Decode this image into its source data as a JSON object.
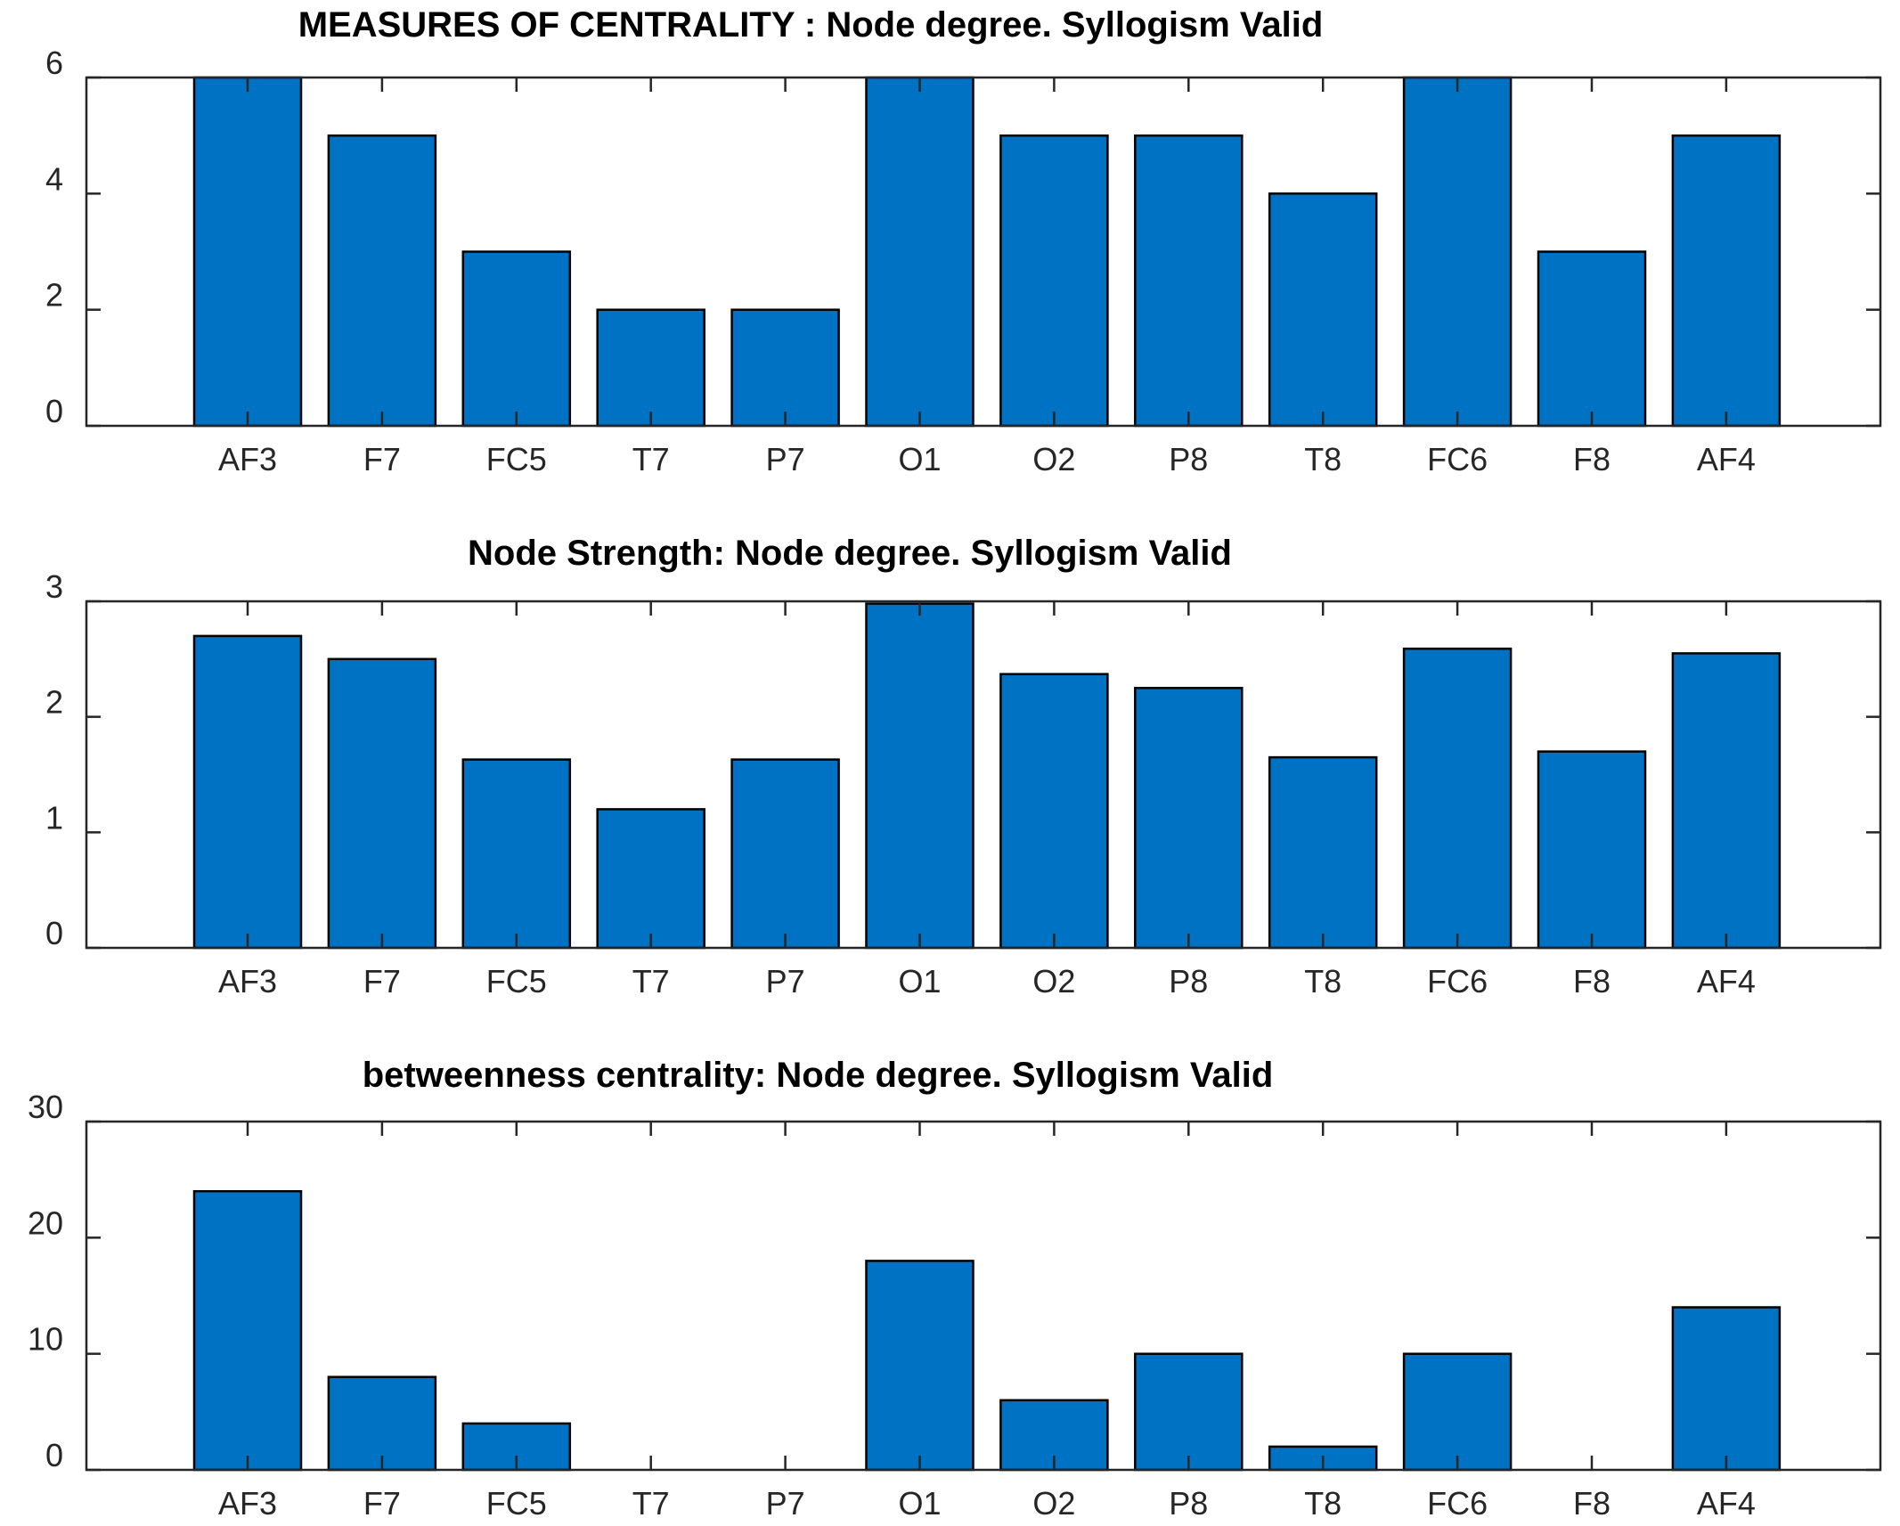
{
  "chart_data": [
    {
      "type": "bar",
      "title": "MEASURES OF CENTRALITY : Node degree. Syllogism  Valid",
      "categories": [
        "AF3",
        "F7",
        "FC5",
        "T7",
        "P7",
        "O1",
        "O2",
        "P8",
        "T8",
        "FC6",
        "F8",
        "AF4"
      ],
      "values": [
        6,
        5,
        3,
        2,
        2,
        6,
        5,
        5,
        4,
        6,
        3,
        5
      ],
      "ylim": [
        0,
        6
      ],
      "yticks": [
        0,
        2,
        4,
        6
      ],
      "xlabel": "",
      "ylabel": "",
      "grid": false,
      "bar_color": "#0072c4"
    },
    {
      "type": "bar",
      "title": "Node Strength: Node degree. Syllogism  Valid",
      "categories": [
        "AF3",
        "F7",
        "FC5",
        "T7",
        "P7",
        "O1",
        "O2",
        "P8",
        "T8",
        "FC6",
        "F8",
        "AF4"
      ],
      "values": [
        2.7,
        2.5,
        1.63,
        1.2,
        1.63,
        2.98,
        2.37,
        2.25,
        1.65,
        2.59,
        1.7,
        2.55
      ],
      "ylim": [
        0,
        3
      ],
      "yticks": [
        0,
        1,
        2,
        3
      ],
      "xlabel": "",
      "ylabel": "",
      "grid": false,
      "bar_color": "#0072c4"
    },
    {
      "type": "bar",
      "title": "betweenness centrality: Node degree. Syllogism  Valid",
      "categories": [
        "AF3",
        "F7",
        "FC5",
        "T7",
        "P7",
        "O1",
        "O2",
        "P8",
        "T8",
        "FC6",
        "F8",
        "AF4"
      ],
      "values": [
        24,
        8,
        4,
        0,
        0,
        18,
        6,
        10,
        2,
        10,
        0,
        14
      ],
      "ylim": [
        0,
        30
      ],
      "yticks": [
        0,
        10,
        20,
        30
      ],
      "xlabel": "",
      "ylabel": "",
      "grid": false,
      "bar_color": "#0072c4"
    }
  ]
}
